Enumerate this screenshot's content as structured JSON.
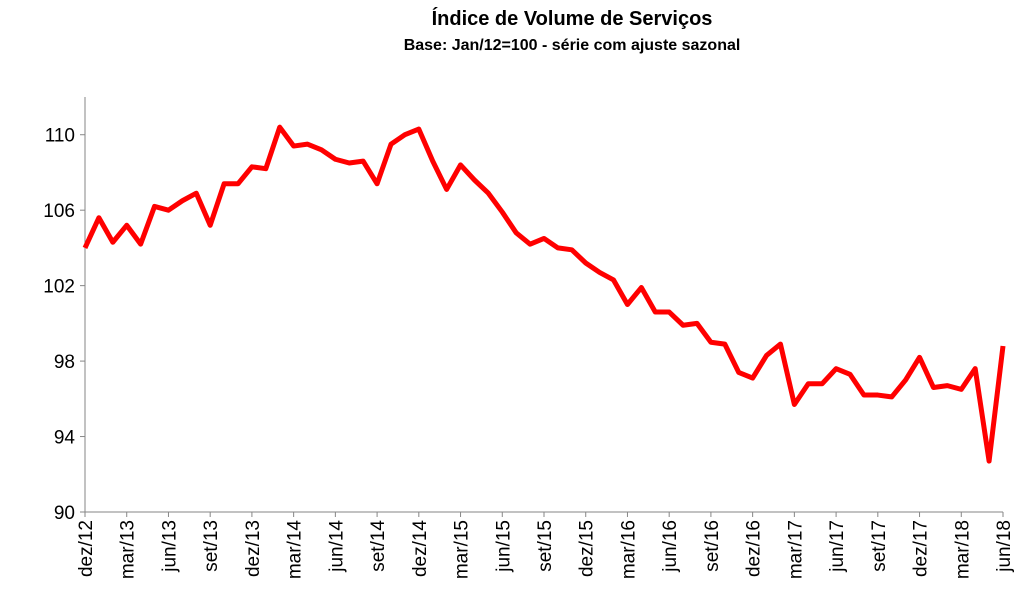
{
  "chart_data": {
    "type": "line",
    "title": "Índice de Volume de Serviços",
    "subtitle": "Base: Jan/12=100 - série com ajuste sazonal",
    "categories": [
      "dez/12",
      null,
      null,
      "mar/13",
      null,
      null,
      "jun/13",
      null,
      null,
      "set/13",
      null,
      null,
      "dez/13",
      null,
      null,
      "mar/14",
      null,
      null,
      "jun/14",
      null,
      null,
      "set/14",
      null,
      null,
      "dez/14",
      null,
      null,
      "mar/15",
      null,
      null,
      "jun/15",
      null,
      null,
      "set/15",
      null,
      null,
      "dez/15",
      null,
      null,
      "mar/16",
      null,
      null,
      "jun/16",
      null,
      null,
      "set/16",
      null,
      null,
      "dez/16",
      null,
      null,
      "mar/17",
      null,
      null,
      "jun/17",
      null,
      null,
      "set/17",
      null,
      null,
      "dez/17",
      null,
      null,
      "mar/18",
      null,
      null,
      "jun/18"
    ],
    "series": [
      {
        "name": "Índice",
        "color": "#ff0000",
        "values": [
          104.0,
          105.6,
          104.3,
          105.2,
          104.2,
          106.2,
          106.0,
          106.5,
          106.9,
          105.2,
          107.4,
          107.4,
          108.3,
          108.2,
          110.4,
          109.4,
          109.5,
          109.2,
          108.7,
          108.5,
          108.6,
          107.4,
          109.5,
          110.0,
          110.3,
          108.6,
          107.1,
          108.4,
          107.6,
          106.9,
          105.9,
          104.8,
          104.2,
          104.5,
          104.0,
          103.9,
          103.2,
          102.7,
          102.3,
          101.0,
          101.9,
          100.6,
          100.6,
          99.9,
          100.0,
          99.0,
          98.9,
          97.4,
          97.1,
          98.3,
          98.9,
          95.7,
          96.8,
          96.8,
          97.6,
          97.3,
          96.2,
          96.2,
          96.1,
          97.0,
          98.2,
          96.6,
          96.7,
          96.5,
          97.6,
          92.7,
          98.8
        ]
      }
    ],
    "ylim": [
      90,
      112
    ],
    "yticks": [
      90,
      94,
      98,
      102,
      106,
      110
    ],
    "grid": false
  }
}
